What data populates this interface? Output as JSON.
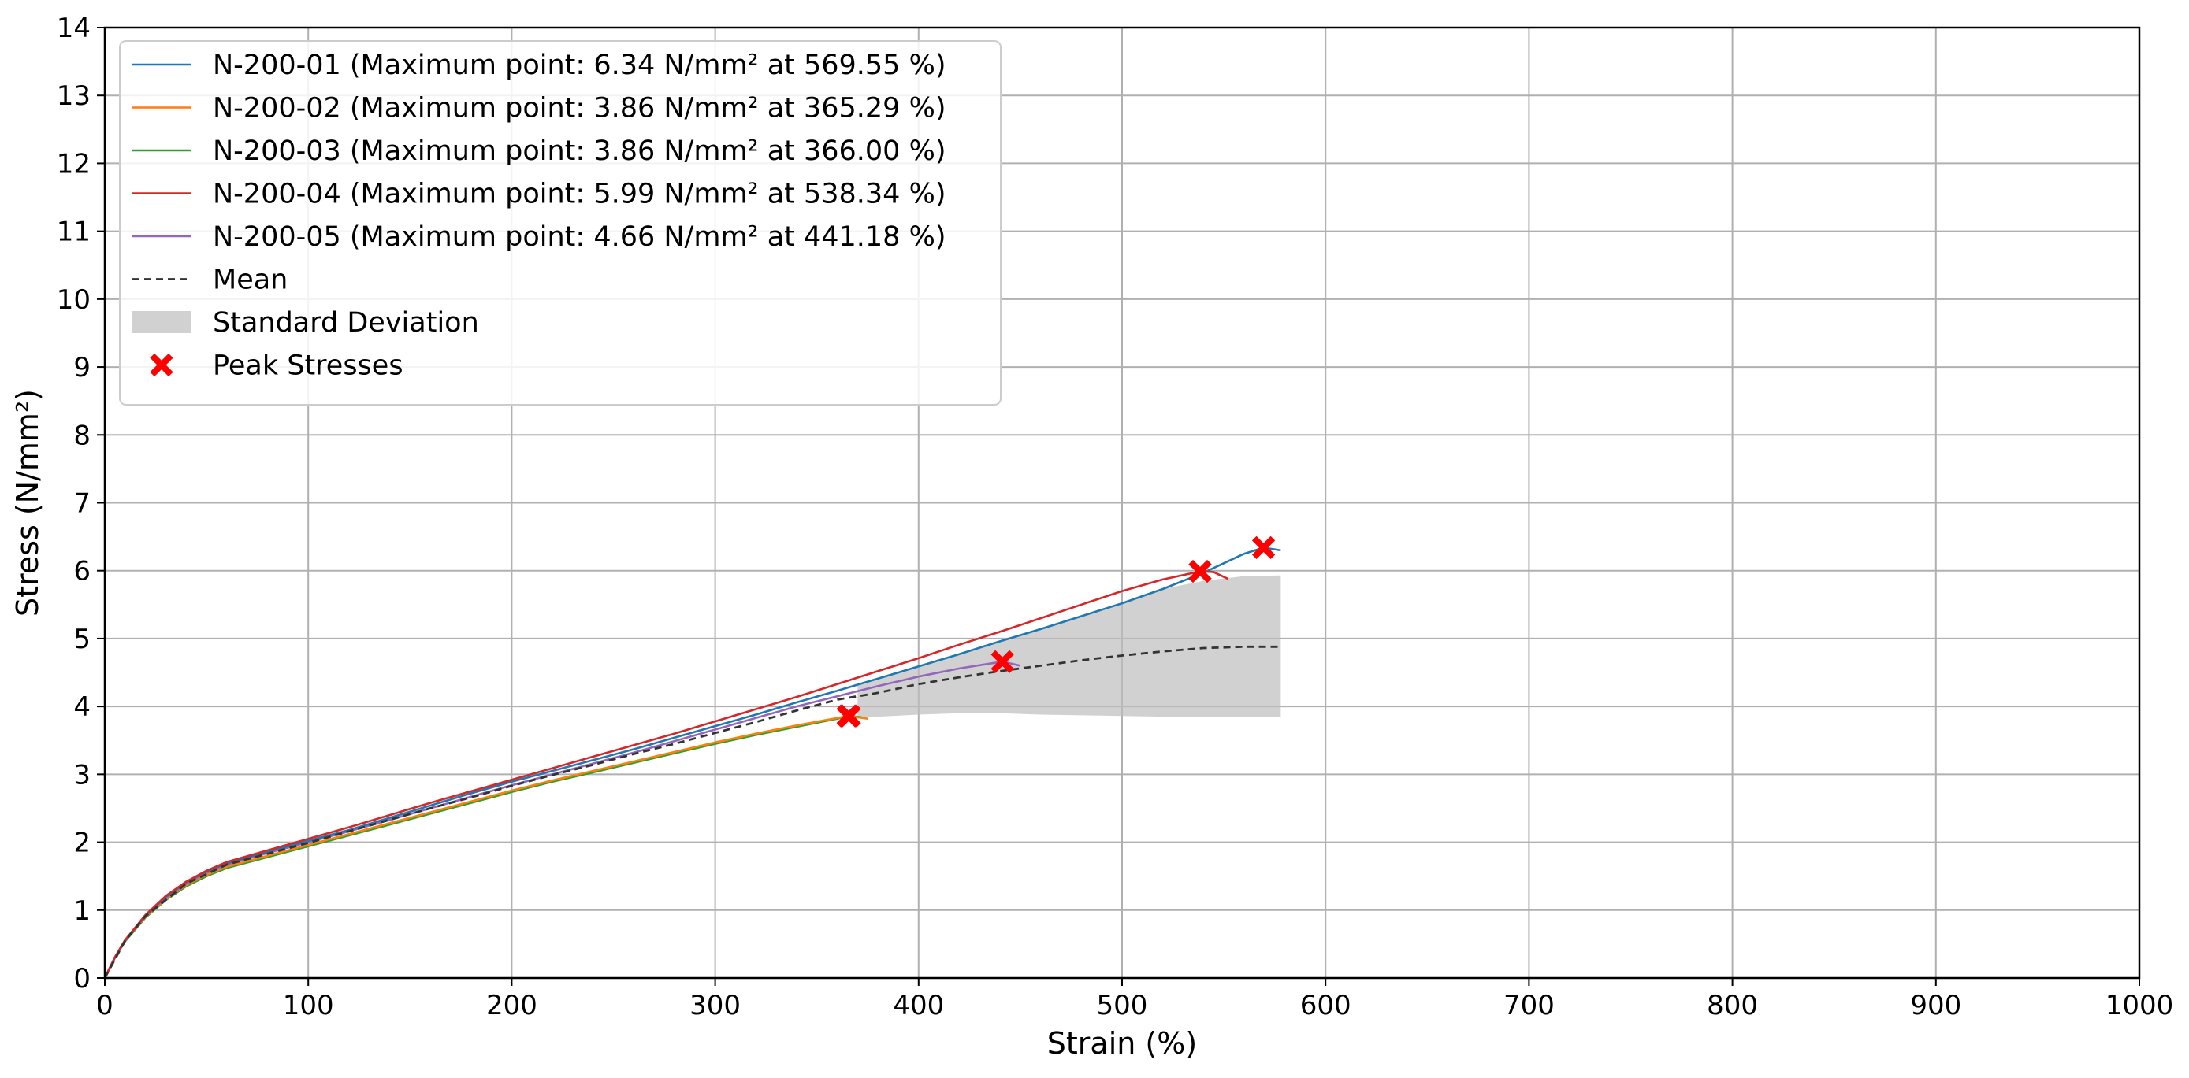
{
  "chart_data": {
    "type": "line",
    "title": "",
    "xlabel": "Strain (%)",
    "ylabel": "Stress (N/mm²)",
    "xlim": [
      0,
      1000
    ],
    "ylim": [
      0,
      14
    ],
    "xticks": [
      0,
      100,
      200,
      300,
      400,
      500,
      600,
      700,
      800,
      900,
      1000
    ],
    "yticks": [
      0,
      1,
      2,
      3,
      4,
      5,
      6,
      7,
      8,
      9,
      10,
      11,
      12,
      13,
      14
    ],
    "grid": true,
    "legend_position": "top-left",
    "series": [
      {
        "name": "N-200-01 (Maximum point: 6.34 N/mm² at 569.55 %)",
        "color": "#1f77b4",
        "x": [
          0,
          5,
          10,
          20,
          30,
          40,
          50,
          60,
          80,
          100,
          120,
          140,
          160,
          180,
          200,
          220,
          240,
          260,
          280,
          300,
          320,
          340,
          360,
          380,
          400,
          420,
          440,
          460,
          480,
          500,
          520,
          540,
          560,
          569.55,
          578
        ],
        "y": [
          0,
          0.3,
          0.55,
          0.92,
          1.2,
          1.41,
          1.57,
          1.69,
          1.86,
          2.02,
          2.18,
          2.36,
          2.54,
          2.72,
          2.89,
          3.05,
          3.21,
          3.37,
          3.54,
          3.71,
          3.88,
          4.06,
          4.23,
          4.41,
          4.59,
          4.77,
          4.96,
          5.14,
          5.33,
          5.52,
          5.73,
          5.97,
          6.25,
          6.34,
          6.3
        ]
      },
      {
        "name": "N-200-02 (Maximum point: 3.86 N/mm² at 365.29 %)",
        "color": "#ff7f0e",
        "x": [
          0,
          5,
          10,
          20,
          30,
          40,
          50,
          60,
          80,
          100,
          120,
          140,
          160,
          180,
          200,
          220,
          240,
          260,
          280,
          300,
          320,
          340,
          360,
          365.29,
          375
        ],
        "y": [
          0,
          0.3,
          0.55,
          0.9,
          1.16,
          1.37,
          1.52,
          1.64,
          1.8,
          1.96,
          2.12,
          2.28,
          2.44,
          2.6,
          2.76,
          2.91,
          3.05,
          3.19,
          3.33,
          3.47,
          3.6,
          3.72,
          3.83,
          3.86,
          3.82
        ]
      },
      {
        "name": "N-200-03 (Maximum point: 3.86 N/mm² at 366.00 %)",
        "color": "#2ca02c",
        "x": [
          0,
          5,
          10,
          20,
          30,
          40,
          50,
          60,
          80,
          100,
          120,
          140,
          160,
          180,
          200,
          220,
          240,
          260,
          280,
          300,
          320,
          340,
          360,
          366.0,
          372
        ],
        "y": [
          0,
          0.3,
          0.54,
          0.89,
          1.15,
          1.35,
          1.5,
          1.62,
          1.78,
          1.94,
          2.1,
          2.26,
          2.42,
          2.58,
          2.74,
          2.89,
          3.03,
          3.17,
          3.31,
          3.45,
          3.58,
          3.7,
          3.82,
          3.86,
          3.84
        ]
      },
      {
        "name": "N-200-04 (Maximum point: 5.99 N/mm² at 538.34 %)",
        "color": "#d62728",
        "x": [
          0,
          5,
          10,
          20,
          30,
          40,
          50,
          60,
          80,
          100,
          120,
          140,
          160,
          180,
          200,
          220,
          240,
          260,
          280,
          300,
          320,
          340,
          360,
          380,
          400,
          420,
          440,
          460,
          480,
          500,
          520,
          538.34,
          545,
          552
        ],
        "y": [
          0,
          0.31,
          0.56,
          0.93,
          1.21,
          1.42,
          1.58,
          1.71,
          1.88,
          2.05,
          2.22,
          2.4,
          2.58,
          2.75,
          2.92,
          3.09,
          3.26,
          3.43,
          3.6,
          3.78,
          3.96,
          4.14,
          4.33,
          4.52,
          4.71,
          4.91,
          5.1,
          5.3,
          5.5,
          5.7,
          5.87,
          5.99,
          5.98,
          5.88
        ]
      },
      {
        "name": "N-200-05 (Maximum point: 4.66 N/mm² at 441.18 %)",
        "color": "#9467bd",
        "x": [
          0,
          5,
          10,
          20,
          30,
          40,
          50,
          60,
          80,
          100,
          120,
          140,
          160,
          180,
          200,
          220,
          240,
          260,
          280,
          300,
          320,
          340,
          360,
          380,
          400,
          420,
          441.18,
          450
        ],
        "y": [
          0,
          0.3,
          0.55,
          0.91,
          1.18,
          1.39,
          1.55,
          1.67,
          1.84,
          2.0,
          2.16,
          2.33,
          2.5,
          2.67,
          2.84,
          3.0,
          3.16,
          3.32,
          3.49,
          3.66,
          3.83,
          4.0,
          4.15,
          4.3,
          4.44,
          4.56,
          4.66,
          4.6
        ]
      }
    ],
    "mean": {
      "name": "Mean",
      "color": "#333333",
      "x": [
        0,
        10,
        20,
        40,
        60,
        80,
        100,
        120,
        140,
        160,
        180,
        200,
        220,
        240,
        260,
        280,
        300,
        320,
        340,
        360,
        380,
        400,
        420,
        440,
        460,
        480,
        500,
        520,
        540,
        560,
        578
      ],
      "y": [
        0,
        0.55,
        0.91,
        1.39,
        1.67,
        1.83,
        1.99,
        2.16,
        2.33,
        2.5,
        2.66,
        2.83,
        2.99,
        3.14,
        3.3,
        3.45,
        3.61,
        3.77,
        3.94,
        4.1,
        4.2,
        4.33,
        4.43,
        4.52,
        4.6,
        4.68,
        4.75,
        4.81,
        4.86,
        4.88,
        4.88
      ]
    },
    "std_band": {
      "name": "Standard Deviation",
      "color": "#bdbdbd",
      "x": [
        370,
        380,
        400,
        420,
        440,
        460,
        480,
        500,
        520,
        540,
        560,
        578
      ],
      "lower": [
        3.85,
        3.85,
        3.88,
        3.9,
        3.9,
        3.88,
        3.87,
        3.86,
        3.85,
        3.85,
        3.84,
        3.84
      ],
      "upper": [
        4.33,
        4.42,
        4.58,
        4.77,
        4.96,
        5.14,
        5.33,
        5.52,
        5.73,
        5.85,
        5.92,
        5.93
      ]
    },
    "peaks": {
      "name": "Peak Stresses",
      "color": "#ff0000",
      "points": [
        {
          "x": 569.55,
          "y": 6.34
        },
        {
          "x": 365.29,
          "y": 3.86
        },
        {
          "x": 366.0,
          "y": 3.86
        },
        {
          "x": 538.34,
          "y": 5.99
        },
        {
          "x": 441.18,
          "y": 4.66
        }
      ]
    }
  }
}
